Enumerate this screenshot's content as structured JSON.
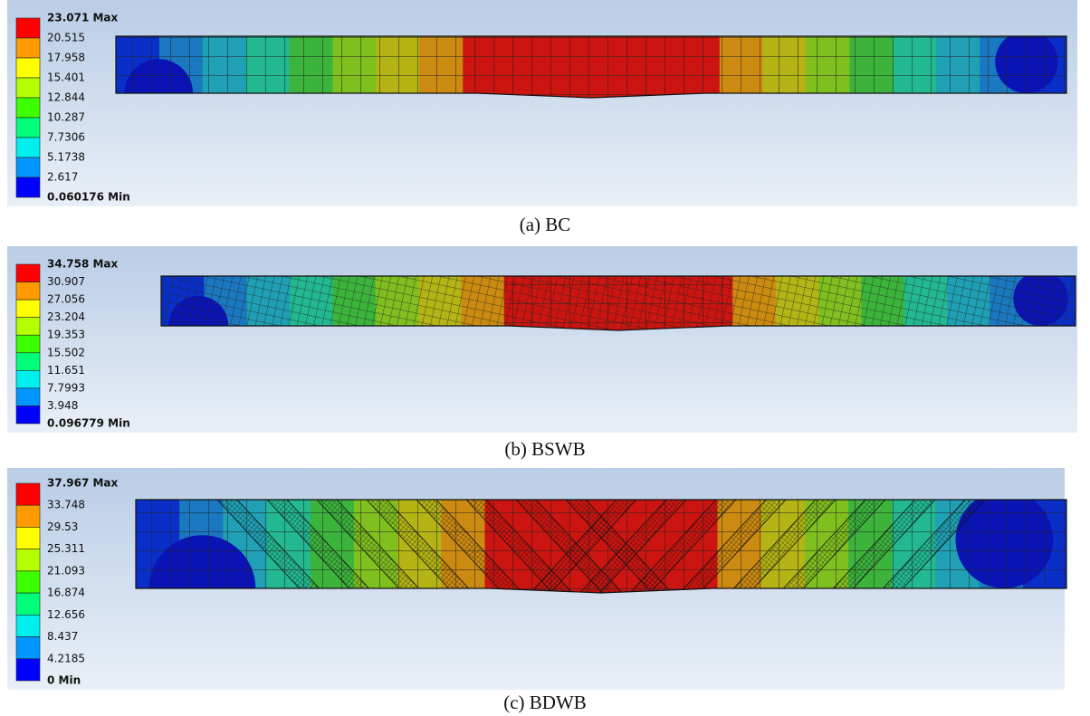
{
  "panels": [
    {
      "legend": [
        "23.071 Max",
        "20.515",
        "17.958",
        "15.401",
        "12.844",
        "10.287",
        "7.7306",
        "5.1738",
        "2.617",
        "0.060176 Min"
      ],
      "caption": "(a) BC"
    },
    {
      "legend": [
        "34.758 Max",
        "30.907",
        "27.056",
        "23.204",
        "19.353",
        "15.502",
        "11.651",
        "7.7993",
        "3.948",
        "0.096779 Min"
      ],
      "caption": "(b) BSWB"
    },
    {
      "legend": [
        "37.967 Max",
        "33.748",
        "29.53",
        "25.311",
        "21.093",
        "16.874",
        "12.656",
        "8.437",
        "4.2185",
        "0 Min"
      ],
      "caption": "(c) BDWB"
    }
  ]
}
